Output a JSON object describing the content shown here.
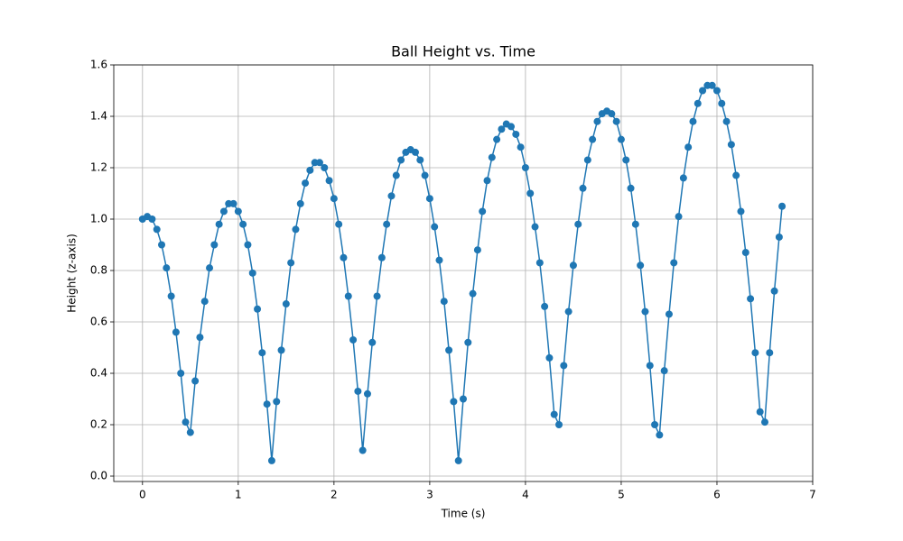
{
  "chart_data": {
    "type": "line",
    "title": "Ball Height vs. Time",
    "x_label": "Time (s)",
    "y_label": "Height (z-axis)",
    "x": [
      0,
      0.05,
      0.1,
      0.15,
      0.2,
      0.25,
      0.3,
      0.35,
      0.4,
      0.45,
      0.5,
      0.55,
      0.6,
      0.65,
      0.7,
      0.75,
      0.8,
      0.85,
      0.9,
      0.95,
      1.0,
      1.05,
      1.1,
      1.15,
      1.2,
      1.25,
      1.3,
      1.35,
      1.4,
      1.45,
      1.5,
      1.55,
      1.6,
      1.65,
      1.7,
      1.75,
      1.8,
      1.85,
      1.9,
      1.95,
      2.0,
      2.05,
      2.1,
      2.15,
      2.2,
      2.25,
      2.3,
      2.35,
      2.4,
      2.45,
      2.5,
      2.55,
      2.6,
      2.65,
      2.7,
      2.75,
      2.8,
      2.85,
      2.9,
      2.95,
      3.0,
      3.05,
      3.1,
      3.15,
      3.2,
      3.25,
      3.3,
      3.35,
      3.4,
      3.45,
      3.5,
      3.55,
      3.6,
      3.65,
      3.7,
      3.75,
      3.8,
      3.85,
      3.9,
      3.95,
      4.0,
      4.05,
      4.1,
      4.15,
      4.2,
      4.25,
      4.3,
      4.35,
      4.4,
      4.45,
      4.5,
      4.55,
      4.6,
      4.65,
      4.7,
      4.75,
      4.8,
      4.85,
      4.9,
      4.95,
      5.0,
      5.05,
      5.1,
      5.15,
      5.2,
      5.25,
      5.3,
      5.35,
      5.4,
      5.45,
      5.5,
      5.55,
      5.6,
      5.65,
      5.7,
      5.75,
      5.8,
      5.85,
      5.9,
      5.95,
      6.0,
      6.05,
      6.1,
      6.15,
      6.2,
      6.25,
      6.3,
      6.35,
      6.4,
      6.45,
      6.5,
      6.55,
      6.6,
      6.65,
      6.68
    ],
    "series": [
      {
        "color": "#1f77b4",
        "values": [
          1.0,
          1.01,
          1.0,
          0.96,
          0.9,
          0.81,
          0.7,
          0.56,
          0.4,
          0.21,
          0.17,
          0.37,
          0.54,
          0.68,
          0.81,
          0.9,
          0.98,
          1.03,
          1.06,
          1.06,
          1.03,
          0.98,
          0.9,
          0.79,
          0.65,
          0.48,
          0.28,
          0.06,
          0.29,
          0.49,
          0.67,
          0.83,
          0.96,
          1.06,
          1.14,
          1.19,
          1.22,
          1.22,
          1.2,
          1.15,
          1.08,
          0.98,
          0.85,
          0.7,
          0.53,
          0.33,
          0.1,
          0.32,
          0.52,
          0.7,
          0.85,
          0.98,
          1.09,
          1.17,
          1.23,
          1.26,
          1.27,
          1.26,
          1.23,
          1.17,
          1.08,
          0.97,
          0.84,
          0.68,
          0.49,
          0.29,
          0.06,
          0.3,
          0.52,
          0.71,
          0.88,
          1.03,
          1.15,
          1.24,
          1.31,
          1.35,
          1.37,
          1.36,
          1.33,
          1.28,
          1.2,
          1.1,
          0.97,
          0.83,
          0.66,
          0.46,
          0.24,
          0.2,
          0.43,
          0.64,
          0.82,
          0.98,
          1.12,
          1.23,
          1.31,
          1.38,
          1.41,
          1.42,
          1.41,
          1.38,
          1.31,
          1.23,
          1.12,
          0.98,
          0.82,
          0.64,
          0.43,
          0.2,
          0.16,
          0.41,
          0.63,
          0.83,
          1.01,
          1.16,
          1.28,
          1.38,
          1.45,
          1.5,
          1.52,
          1.52,
          1.5,
          1.45,
          1.38,
          1.29,
          1.17,
          1.03,
          0.87,
          0.69,
          0.48,
          0.25,
          0.21,
          0.48,
          0.72,
          0.93,
          1.05
        ]
      }
    ],
    "xlim": [
      -0.3,
      7.0
    ],
    "ylim": [
      -0.021,
      1.6
    ],
    "xticks": [
      0,
      1,
      2,
      3,
      4,
      5,
      6,
      7
    ],
    "yticks": [
      {
        "value": 0,
        "label": "0.0"
      },
      0.2,
      0.4,
      0.6,
      0.8,
      {
        "value": 1,
        "label": "1.0"
      },
      1.2,
      1.4,
      1.6
    ],
    "grid": true
  }
}
